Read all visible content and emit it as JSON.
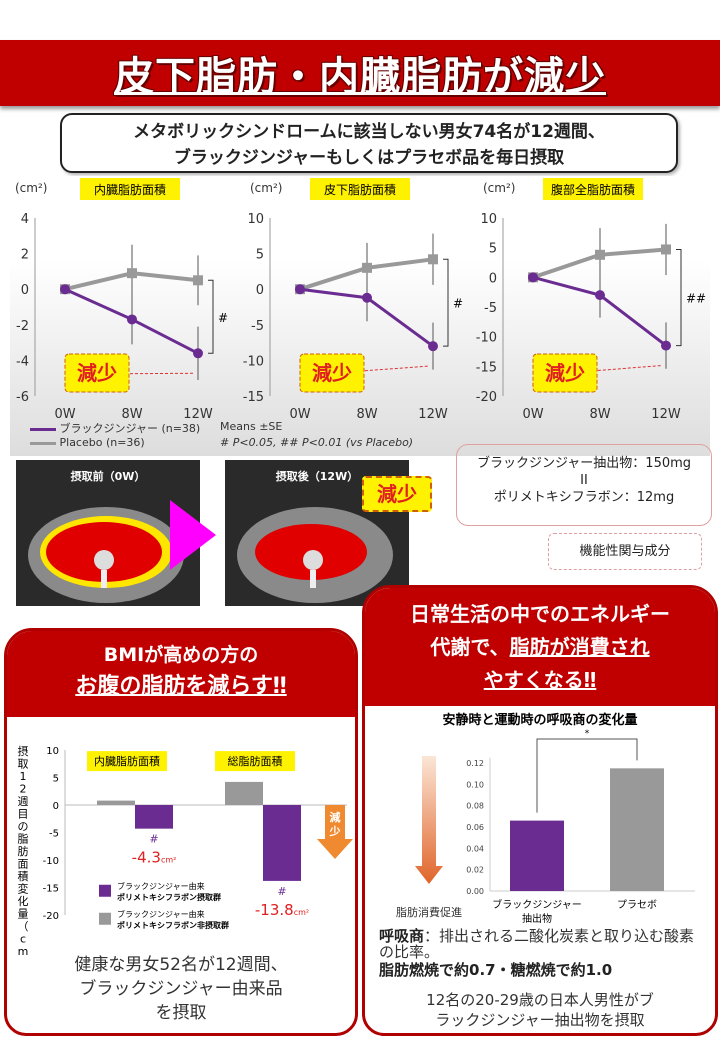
{
  "header": {
    "title": "皮下脂肪・内臓脂肪が減少",
    "subtitle_line1": "メタボリックシンドロームに該当しない男女74名が12週間、",
    "subtitle_line2": "ブラックジンジャーもしくはプラセボ品を毎日摂取"
  },
  "colors": {
    "brand_red": "#c00000",
    "black_ginger": "#6a2c91",
    "placebo": "#999999",
    "highlight": "#fff200",
    "arrow_magenta": "#ff00ff",
    "arrow_orange": "#f08a30"
  },
  "chart_data": [
    {
      "type": "line",
      "title": "内臓脂肪面積",
      "ylabel": "(cm²)",
      "x": [
        "0W",
        "8W",
        "12W"
      ],
      "ylim": [
        -6,
        4
      ],
      "yticks": [
        4,
        2,
        0,
        -2,
        -4,
        -6
      ],
      "series": [
        {
          "name": "ブラックジンジャー (n=38)",
          "values": [
            0,
            -1.7,
            -3.6
          ],
          "se": [
            0,
            1.4,
            1.5
          ]
        },
        {
          "name": "Placebo (n=36)",
          "values": [
            0,
            0.9,
            0.5
          ],
          "se": [
            0,
            1.6,
            1.4
          ]
        }
      ],
      "significance": "#",
      "callout": "減少"
    },
    {
      "type": "line",
      "title": "皮下脂肪面積",
      "ylabel": "(cm²)",
      "x": [
        "0W",
        "8W",
        "12W"
      ],
      "ylim": [
        -15,
        10
      ],
      "yticks": [
        10,
        5,
        0,
        -5,
        -10,
        -15
      ],
      "series": [
        {
          "name": "ブラックジンジャー (n=38)",
          "values": [
            0,
            -1.2,
            -8
          ],
          "se": [
            0,
            3.3,
            3.3
          ]
        },
        {
          "name": "Placebo (n=36)",
          "values": [
            0,
            3,
            4.2
          ],
          "se": [
            0,
            3.5,
            3.6
          ]
        }
      ],
      "significance": "#",
      "callout": "減少"
    },
    {
      "type": "line",
      "title": "腹部全脂肪面積",
      "ylabel": "(cm²)",
      "x": [
        "0W",
        "8W",
        "12W"
      ],
      "ylim": [
        -20,
        10
      ],
      "yticks": [
        10,
        5,
        0,
        -5,
        -10,
        -15,
        -20
      ],
      "series": [
        {
          "name": "ブラックジンジャー (n=38)",
          "values": [
            0,
            -3,
            -11.5
          ],
          "se": [
            0,
            3.8,
            3.9
          ]
        },
        {
          "name": "Placebo (n=36)",
          "values": [
            0,
            3.8,
            4.7
          ],
          "se": [
            0,
            4.5,
            4.3
          ]
        }
      ],
      "significance": "##",
      "callout": "減少"
    },
    {
      "type": "bar",
      "ylabel": "摂取12週目の脂肪面積変化量（cm²）",
      "categories": [
        "内臓脂肪面積",
        "総脂肪面積"
      ],
      "ylim": [
        -20,
        10
      ],
      "yticks": [
        10,
        5,
        0,
        -5,
        -10,
        -15,
        -20
      ],
      "series": [
        {
          "name": "ブラックジンジャー由来ポリメトキシフラボン非摂取群",
          "values": [
            0.8,
            4.2
          ]
        },
        {
          "name": "ブラックジンジャー由来ポリメトキシフラボン摂取群",
          "values": [
            -4.3,
            -13.8
          ]
        }
      ],
      "data_labels": [
        "-4.3",
        "-13.8"
      ],
      "data_label_unit": "cm²",
      "significance": [
        "#",
        "#"
      ],
      "arrow_label": "減少"
    },
    {
      "type": "bar",
      "title": "安静時と運動時の呼吸商の変化量",
      "categories": [
        "ブラックジンジャー抽出物",
        "プラセボ"
      ],
      "values": [
        0.066,
        0.115
      ],
      "ylim": [
        0,
        0.12
      ],
      "yticks": [
        "0.12",
        "0.10",
        "0.08",
        "0.06",
        "0.04",
        "0.02",
        "0.00"
      ],
      "significance": "*",
      "arrow_label": "脂肪消費促進"
    }
  ],
  "legend": {
    "black_ginger": "ブラックジンジャー (n=38)",
    "placebo": "Placebo (n=36)",
    "stats": "Means ±SE",
    "pvalues": "# P<0.05, ## P<0.01 (vs Placebo)"
  },
  "ct": {
    "before": "摂取前（0W）",
    "after": "摂取後（12W）",
    "callout": "減少"
  },
  "ingredients": {
    "line1": "ブラックジンジャー抽出物：150mg",
    "equals": "II",
    "line2": "ポリメトキシフラボン：12mg",
    "functional": "機能性関与成分"
  },
  "left_panel": {
    "head1": "BMIが高めの方の",
    "head2": "お腹の脂肪を減らす‼",
    "footer1": "健康な男女52名が12週間、",
    "footer2": "ブラックジンジャー由来品",
    "footer3": "を摂取"
  },
  "right_panel": {
    "head1": "日常生活の中でのエネルギー",
    "head2a": "代謝で、",
    "head2b": "脂肪が消費され",
    "head3": "やすくなる‼",
    "def_bold": "呼吸商",
    "def_text": "：排出される二酸化炭素と取り込む酸素の比率。",
    "def_line2": "脂肪燃焼で約0.7・糖燃焼で約1.0",
    "footer1": "12名の20-29歳の日本人男性がブ",
    "footer2": "ラックジンジャー抽出物を摂取"
  }
}
